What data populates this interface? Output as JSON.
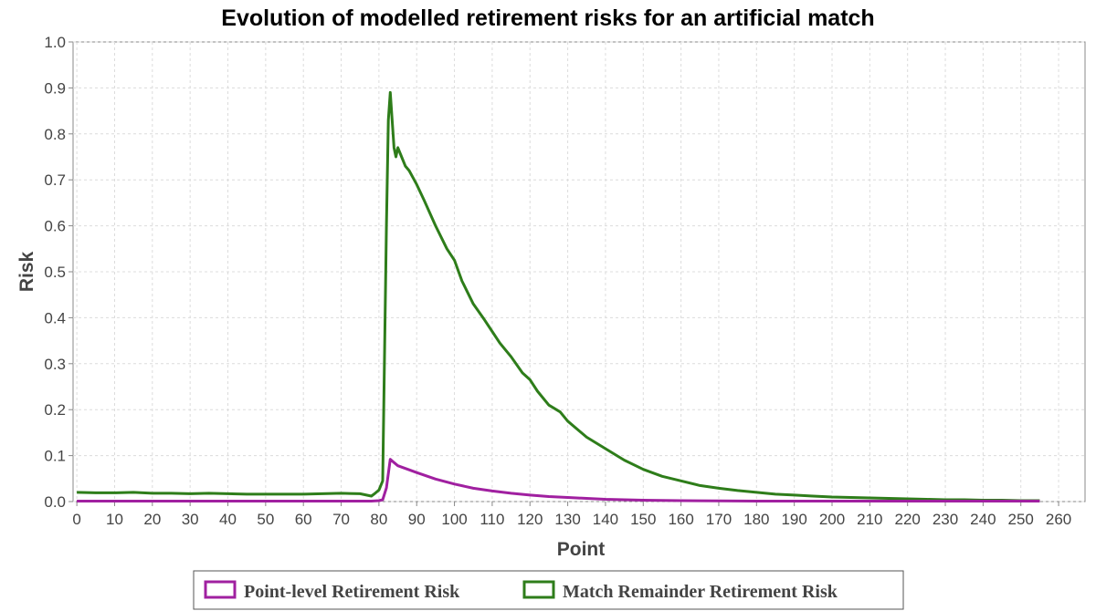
{
  "chart_data": {
    "type": "line",
    "title": "Evolution of modelled retirement risks for an artificial match",
    "xlabel": "Point",
    "ylabel": "Risk",
    "xlim": [
      -1,
      267
    ],
    "ylim": [
      0,
      1.0
    ],
    "xticks": [
      "0",
      "10",
      "20",
      "30",
      "40",
      "50",
      "60",
      "70",
      "80",
      "90",
      "100",
      "110",
      "120",
      "130",
      "140",
      "150",
      "160",
      "170",
      "180",
      "190",
      "200",
      "210",
      "220",
      "230",
      "240",
      "250",
      "260"
    ],
    "yticks": [
      "0.0",
      "0.1",
      "0.2",
      "0.3",
      "0.4",
      "0.5",
      "0.6",
      "0.7",
      "0.8",
      "0.9",
      "1.0"
    ],
    "grid": true,
    "legend_position": "bottom",
    "series": [
      {
        "name": "Point-level Retirement Risk",
        "color": "#a020a0",
        "x": [
          0,
          10,
          20,
          30,
          40,
          50,
          60,
          70,
          78,
          80,
          81,
          82,
          83,
          84,
          85,
          86,
          88,
          90,
          95,
          100,
          105,
          110,
          115,
          120,
          125,
          130,
          135,
          140,
          145,
          150,
          160,
          170,
          180,
          190,
          200,
          210,
          220,
          230,
          240,
          250,
          255
        ],
        "y": [
          0.001,
          0.001,
          0.001,
          0.001,
          0.001,
          0.001,
          0.001,
          0.001,
          0.001,
          0.002,
          0.004,
          0.03,
          0.092,
          0.085,
          0.078,
          0.075,
          0.069,
          0.063,
          0.049,
          0.038,
          0.029,
          0.023,
          0.018,
          0.014,
          0.011,
          0.009,
          0.007,
          0.005,
          0.004,
          0.003,
          0.002,
          0.0015,
          0.001,
          0.001,
          0.001,
          0.001,
          0.001,
          0.001,
          0.001,
          0.001,
          0.001
        ]
      },
      {
        "name": "Match Remainder Retirement Risk",
        "color": "#2e7d1a",
        "x": [
          0,
          5,
          10,
          15,
          20,
          25,
          30,
          35,
          40,
          45,
          50,
          55,
          60,
          65,
          70,
          75,
          78,
          79,
          80,
          81,
          82,
          82.5,
          83,
          84,
          84.5,
          85,
          86,
          87,
          88,
          90,
          92,
          95,
          98,
          100,
          102,
          105,
          108,
          110,
          112,
          115,
          118,
          120,
          122,
          125,
          128,
          130,
          135,
          140,
          145,
          150,
          155,
          160,
          165,
          170,
          175,
          180,
          185,
          190,
          195,
          200,
          205,
          210,
          215,
          220,
          225,
          230,
          235,
          240,
          245,
          250,
          255
        ],
        "y": [
          0.02,
          0.019,
          0.019,
          0.02,
          0.018,
          0.018,
          0.017,
          0.018,
          0.017,
          0.016,
          0.016,
          0.016,
          0.016,
          0.017,
          0.018,
          0.017,
          0.012,
          0.018,
          0.025,
          0.045,
          0.6,
          0.83,
          0.89,
          0.77,
          0.75,
          0.77,
          0.75,
          0.73,
          0.72,
          0.69,
          0.655,
          0.6,
          0.55,
          0.525,
          0.48,
          0.43,
          0.395,
          0.37,
          0.345,
          0.315,
          0.28,
          0.265,
          0.24,
          0.21,
          0.195,
          0.175,
          0.14,
          0.115,
          0.09,
          0.07,
          0.055,
          0.045,
          0.035,
          0.029,
          0.024,
          0.02,
          0.016,
          0.014,
          0.012,
          0.01,
          0.009,
          0.008,
          0.007,
          0.006,
          0.005,
          0.004,
          0.004,
          0.003,
          0.003,
          0.002,
          0.002
        ]
      }
    ]
  }
}
